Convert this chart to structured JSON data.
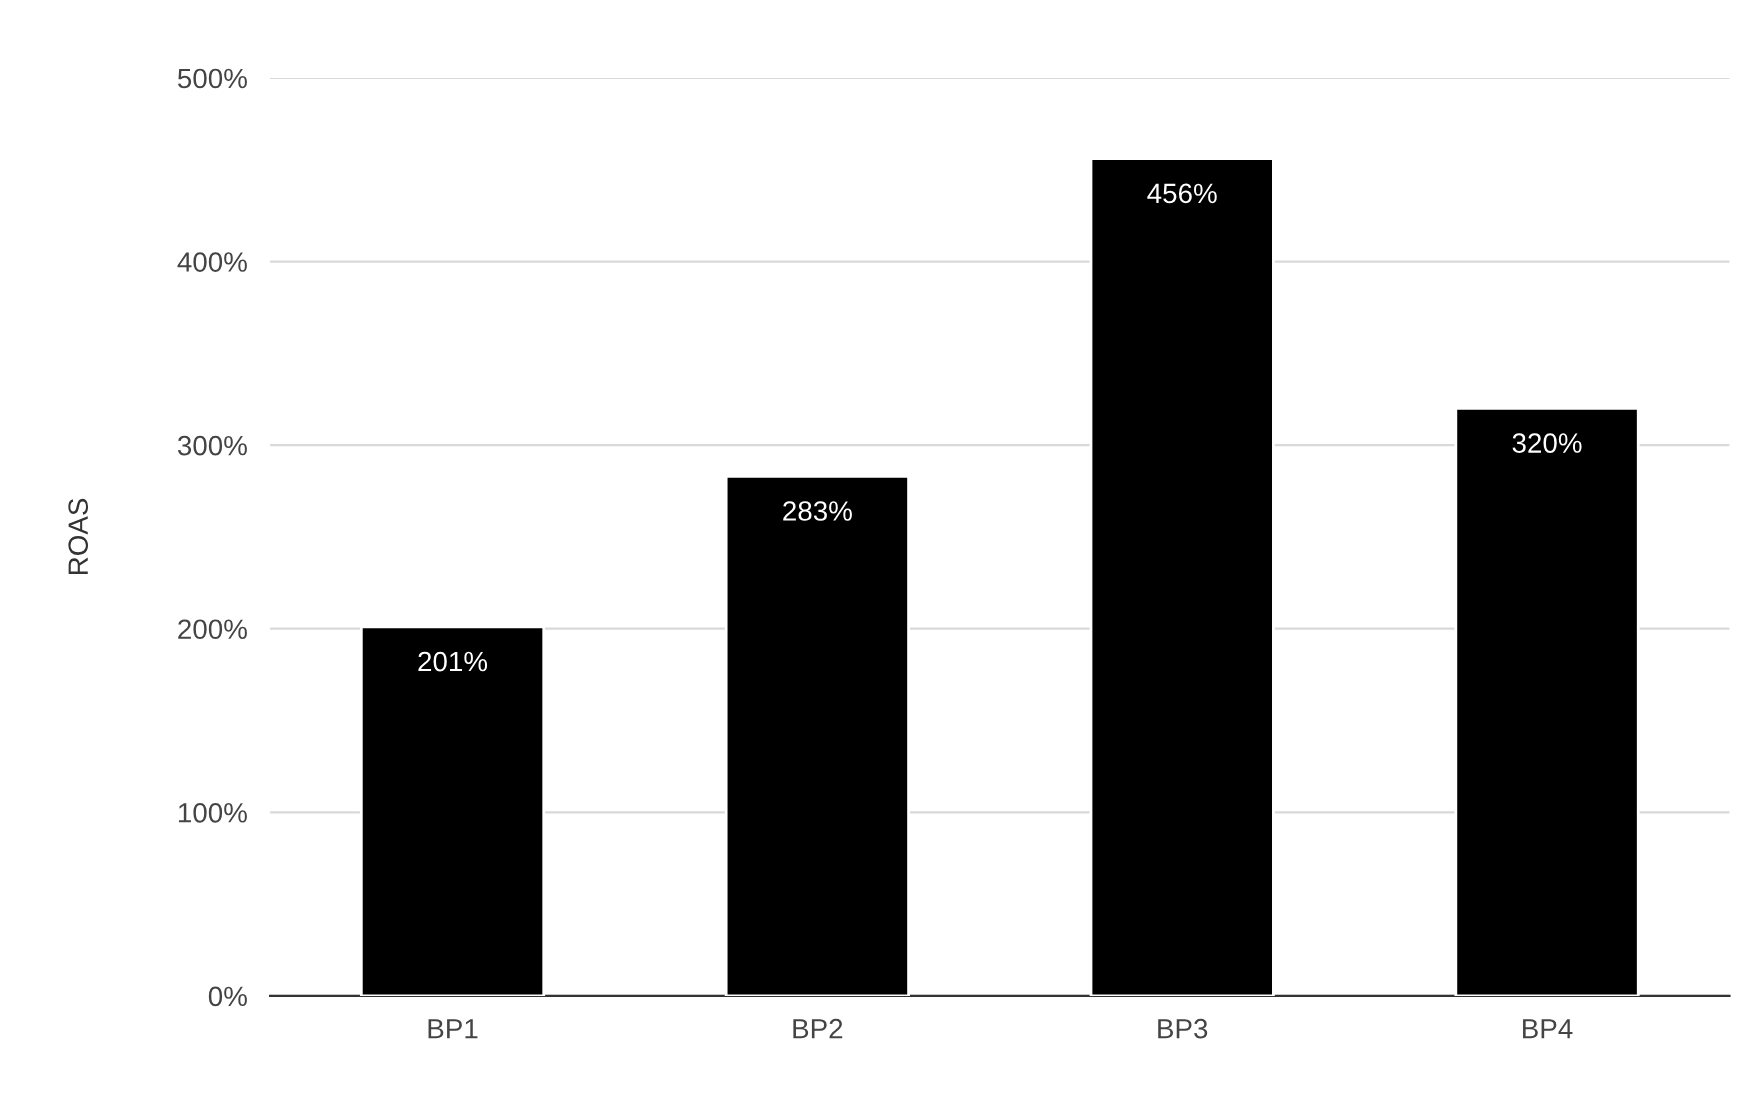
{
  "chart_data": {
    "type": "bar",
    "ylabel": "ROAS",
    "categories": [
      "BP1",
      "BP2",
      "BP3",
      "BP4"
    ],
    "values": [
      201,
      283,
      456,
      320
    ],
    "value_labels": [
      "201%",
      "283%",
      "456%",
      "320%"
    ],
    "color": "#000000",
    "ylim": [
      0,
      500
    ],
    "yticks": [
      {
        "value": 0,
        "label": "0%"
      },
      {
        "value": 100,
        "label": "100%"
      },
      {
        "value": 200,
        "label": "200%"
      },
      {
        "value": 300,
        "label": "300%"
      },
      {
        "value": 400,
        "label": "400%"
      },
      {
        "value": 500,
        "label": "500%"
      }
    ],
    "grid": "y",
    "legend": false
  }
}
